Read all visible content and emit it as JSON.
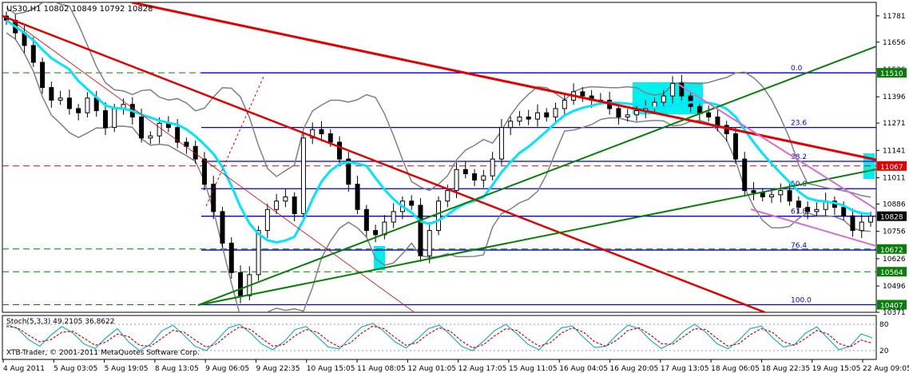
{
  "header": {
    "symbol_line": "US30,H1  10802 10849 10792 10828",
    "stoch_label": "Stoch(5,3,3) 49.2105 36.8622",
    "copyright": "XTB-Trader, © 2001-2011 MetaQuotes Software Corp."
  },
  "colors": {
    "candle": "#000000",
    "ma": "#00e5ff",
    "bollinger": "#808080",
    "resistance": "#e00000",
    "support": "#0a7d0a",
    "channel": "#d070d0",
    "fib": "#0000cc",
    "highlight": "#00f0f0",
    "stoch_main": "#20b0c0",
    "stoch_signal": "#e00000"
  },
  "chart_data": [
    {
      "type": "candlestick",
      "symbol": "US30",
      "timeframe": "H1",
      "ylim": [
        10371,
        11845
      ],
      "y_ticks": [
        "11781",
        "11656",
        "11526",
        "11396",
        "11271",
        "11141",
        "11011",
        "10886",
        "10756",
        "10626",
        "10496",
        "10371"
      ],
      "x_ticks": [
        "4 Aug 2011",
        "5 Aug 03:05",
        "5 Aug 19:05",
        "8 Aug 13:05",
        "9 Aug 06:05",
        "9 Aug 22:35",
        "10 Aug 15:05",
        "11 Aug 08:05",
        "12 Aug 01:05",
        "12 Aug 17:05",
        "15 Aug 11:05",
        "16 Aug 04:05",
        "16 Aug 20:05",
        "17 Aug 13:05",
        "18 Aug 06:05",
        "18 Aug 22:35",
        "19 Aug 15:05",
        "22 Aug 09:05"
      ],
      "price_labels": [
        {
          "text": "11510",
          "value": 11510,
          "style": "green"
        },
        {
          "text": "11067",
          "value": 11067,
          "style": "red"
        },
        {
          "text": "10828",
          "value": 10828,
          "style": "black"
        },
        {
          "text": "10672",
          "value": 10672,
          "style": "green"
        },
        {
          "text": "10564",
          "value": 10564,
          "style": "green"
        },
        {
          "text": "10407",
          "value": 10407,
          "style": "green"
        }
      ],
      "fibonacci": {
        "high": 11510,
        "low": 10407,
        "levels": [
          {
            "label": "0.0",
            "value": 11510
          },
          {
            "label": "23.6",
            "value": 11250
          },
          {
            "label": "38.2",
            "value": 11089
          },
          {
            "label": "50.0",
            "value": 10959
          },
          {
            "label": "61.8",
            "value": 10828
          },
          {
            "label": "76.4",
            "value": 10667
          },
          {
            "label": "100.0",
            "value": 10407
          }
        ]
      },
      "close_series": [
        11760,
        11700,
        11640,
        11560,
        11440,
        11380,
        11390,
        11340,
        11320,
        11390,
        11330,
        11250,
        11340,
        11360,
        11300,
        11200,
        11210,
        11270,
        11250,
        11180,
        11160,
        11100,
        10980,
        10850,
        10700,
        10560,
        10450,
        10550,
        10760,
        10860,
        10900,
        10920,
        10840,
        11200,
        11240,
        11220,
        11180,
        11100,
        10980,
        10860,
        10760,
        10740,
        10800,
        10850,
        10900,
        10880,
        10640,
        10760,
        10900,
        10950,
        11050,
        11030,
        11000,
        11020,
        11100,
        11250,
        11280,
        11300,
        11290,
        11320,
        11300,
        11340,
        11380,
        11420,
        11400,
        11380,
        11380,
        11340,
        11300,
        11310,
        11330,
        11340,
        11370,
        11400,
        11460,
        11400,
        11350,
        11320,
        11300,
        11260,
        11220,
        11100,
        10950,
        10940,
        10920,
        10930,
        10950,
        10900,
        10870,
        10850,
        10860,
        10900,
        10870,
        10830,
        10760,
        10800,
        10828
      ]
    },
    {
      "type": "line",
      "title": "Stoch(5,3,3) 49.2105 36.8622",
      "ylim": [
        0,
        100
      ],
      "y_ticks": [
        "80",
        "20"
      ],
      "series": [
        {
          "name": "main",
          "values": [
            80,
            70,
            45,
            30,
            55,
            75,
            60,
            35,
            25,
            50,
            70,
            40,
            20,
            35,
            65,
            78,
            55,
            30,
            20,
            45,
            72,
            80,
            60,
            35,
            22,
            40,
            68,
            75,
            52,
            28,
            24,
            50,
            74,
            82,
            64,
            40,
            26,
            46,
            70,
            78,
            56,
            30,
            20,
            42,
            66,
            80,
            58,
            34,
            22,
            48,
            72,
            76,
            50,
            27,
            30,
            56,
            78,
            70,
            44,
            25,
            38,
            64,
            80,
            62,
            36,
            24,
            44,
            70,
            76,
            50,
            28,
            34,
            60,
            74,
            48,
            22,
            30,
            58,
            49
          ]
        },
        {
          "name": "signal",
          "values": [
            75,
            72,
            55,
            40,
            45,
            62,
            64,
            48,
            32,
            40,
            58,
            52,
            32,
            30,
            48,
            66,
            62,
            44,
            28,
            36,
            58,
            74,
            68,
            48,
            30,
            34,
            54,
            68,
            62,
            42,
            28,
            38,
            60,
            76,
            70,
            50,
            32,
            38,
            58,
            72,
            64,
            42,
            26,
            34,
            54,
            70,
            66,
            46,
            30,
            38,
            60,
            72,
            62,
            40,
            30,
            44,
            66,
            72,
            56,
            36,
            34,
            52,
            70,
            68,
            48,
            30,
            36,
            56,
            70,
            62,
            40,
            32,
            48,
            66,
            58,
            36,
            28,
            44,
            37
          ]
        }
      ]
    }
  ]
}
